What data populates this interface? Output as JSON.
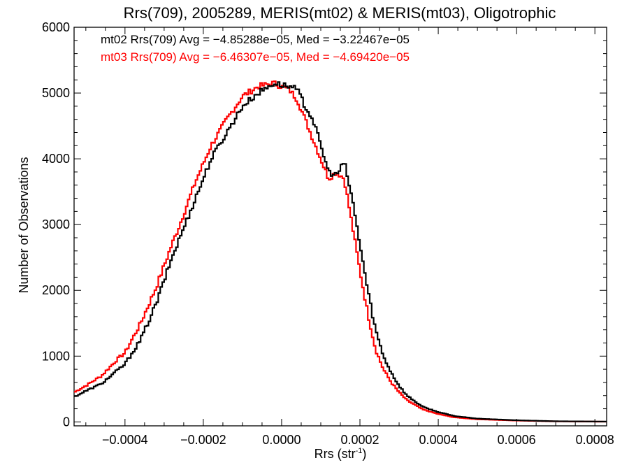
{
  "chart_data": {
    "type": "line",
    "style": "step histogram",
    "title": "Rrs(709), 2005289, MERIS(mt02) & MERIS(mt03), Oligotrophic",
    "xlabel_main": "Rrs (str",
    "xlabel_sup": "-1",
    "xlabel_close": ")",
    "ylabel": "Number of Observations",
    "xlim": [
      -0.00053,
      0.00083
    ],
    "ylim": [
      -60,
      6000
    ],
    "x_ticks": [
      -0.0004,
      -0.0002,
      0.0,
      0.0002,
      0.0004,
      0.0006,
      0.0008
    ],
    "x_tick_labels": [
      "−0.0004",
      "−0.0002",
      "0.0000",
      "0.0002",
      "0.0004",
      "0.0006",
      "0.0008"
    ],
    "y_ticks": [
      0,
      1000,
      2000,
      3000,
      4000,
      5000,
      6000
    ],
    "y_tick_labels": [
      "0",
      "1000",
      "2000",
      "3000",
      "4000",
      "5000",
      "6000"
    ],
    "grid": false,
    "legend_position": "top-left",
    "series": [
      {
        "name": "mt02",
        "color": "#000000",
        "stats_text": "mt02 Rrs(709) Avg = −4.85288e−05, Med = −3.22467e−05",
        "points": [
          [
            -0.00053,
            380
          ],
          [
            -0.0005,
            470
          ],
          [
            -0.00046,
            580
          ],
          [
            -0.00042,
            780
          ],
          [
            -0.0004,
            880
          ],
          [
            -0.00036,
            1250
          ],
          [
            -0.00032,
            1800
          ],
          [
            -0.00028,
            2500
          ],
          [
            -0.00026,
            2800
          ],
          [
            -0.00022,
            3400
          ],
          [
            -0.00018,
            4000
          ],
          [
            -0.00014,
            4400
          ],
          [
            -0.0001,
            4800
          ],
          [
            -6e-05,
            5000
          ],
          [
            -2e-05,
            5150
          ],
          [
            2e-05,
            5100
          ],
          [
            4e-05,
            5050
          ],
          [
            6e-05,
            4800
          ],
          [
            8e-05,
            4600
          ],
          [
            0.0001,
            4200
          ],
          [
            0.00012,
            3800
          ],
          [
            0.00014,
            3750
          ],
          [
            0.00016,
            3950
          ],
          [
            0.00018,
            3400
          ],
          [
            0.0002,
            2700
          ],
          [
            0.00022,
            2000
          ],
          [
            0.00024,
            1400
          ],
          [
            0.00026,
            1000
          ],
          [
            0.00028,
            750
          ],
          [
            0.0003,
            550
          ],
          [
            0.00032,
            400
          ],
          [
            0.00036,
            230
          ],
          [
            0.0004,
            150
          ],
          [
            0.00044,
            90
          ],
          [
            0.0005,
            50
          ],
          [
            0.0006,
            25
          ],
          [
            0.0007,
            10
          ],
          [
            0.00083,
            5
          ]
        ]
      },
      {
        "name": "mt03",
        "color": "#ff0000",
        "stats_text": "mt03 Rrs(709) Avg = −6.46307e−05, Med = −4.69420e−05",
        "points": [
          [
            -0.00053,
            450
          ],
          [
            -0.0005,
            550
          ],
          [
            -0.00046,
            700
          ],
          [
            -0.00042,
            950
          ],
          [
            -0.0004,
            1050
          ],
          [
            -0.00036,
            1500
          ],
          [
            -0.00032,
            2050
          ],
          [
            -0.00028,
            2700
          ],
          [
            -0.00026,
            3000
          ],
          [
            -0.00022,
            3650
          ],
          [
            -0.00018,
            4200
          ],
          [
            -0.00014,
            4600
          ],
          [
            -0.0001,
            4950
          ],
          [
            -6e-05,
            5100
          ],
          [
            -2e-05,
            5150
          ],
          [
            2e-05,
            5050
          ],
          [
            4e-05,
            4900
          ],
          [
            6e-05,
            4600
          ],
          [
            8e-05,
            4300
          ],
          [
            0.0001,
            4000
          ],
          [
            0.00012,
            3700
          ],
          [
            0.00014,
            3800
          ],
          [
            0.00016,
            3700
          ],
          [
            0.00018,
            3000
          ],
          [
            0.0002,
            2300
          ],
          [
            0.00022,
            1650
          ],
          [
            0.00024,
            1100
          ],
          [
            0.00026,
            800
          ],
          [
            0.00028,
            600
          ],
          [
            0.0003,
            450
          ],
          [
            0.00032,
            330
          ],
          [
            0.00036,
            190
          ],
          [
            0.0004,
            120
          ],
          [
            0.00044,
            70
          ],
          [
            0.0005,
            40
          ],
          [
            0.0006,
            20
          ],
          [
            0.0007,
            8
          ],
          [
            0.00083,
            3
          ]
        ]
      }
    ]
  }
}
